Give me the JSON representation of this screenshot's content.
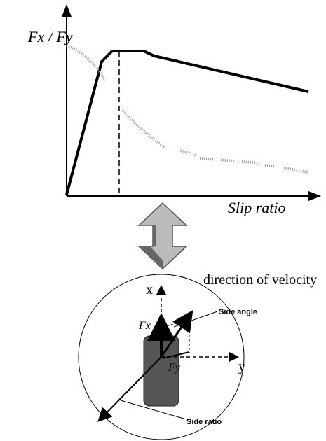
{
  "graph": {
    "y_axis_label": "Fx / Fy",
    "x_axis_label": "Slip ratio"
  },
  "wheel": {
    "velocity_label": "direction of velocity",
    "x_axis_label": "x",
    "y_axis_label": "y",
    "fx_label": "Fx",
    "fy_label": "Fy",
    "side_angle_label": "Side angle",
    "side_ratio_label": "Side ratio"
  }
}
